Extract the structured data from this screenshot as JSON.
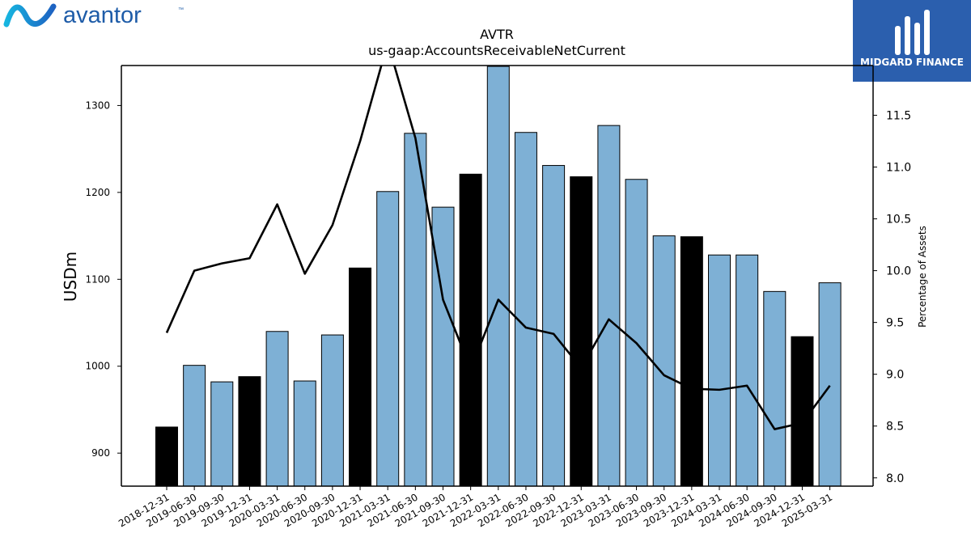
{
  "brand_left": {
    "name": "avantor",
    "trademark": "™"
  },
  "brand_right": {
    "name": "MIDGARD FINANCE"
  },
  "chart_data": {
    "type": "bar",
    "title": "AVTR",
    "subtitle": "us-gaap:AccountsReceivableNetCurrent",
    "ylabel": "USDm",
    "y2label": "Percentage of Assets",
    "ylim": [
      862,
      1346
    ],
    "y2lim": [
      7.92,
      11.98
    ],
    "yticks": [
      900,
      1000,
      1100,
      1200,
      1300
    ],
    "y2ticks": [
      "8.0",
      "8.5",
      "9.0",
      "9.5",
      "10.0",
      "10.5",
      "11.0",
      "11.5"
    ],
    "categories": [
      "2018-12-31",
      "2019-06-30",
      "2019-09-30",
      "2019-12-31",
      "2020-03-31",
      "2020-06-30",
      "2020-09-30",
      "2020-12-31",
      "2021-03-31",
      "2021-06-30",
      "2021-09-30",
      "2021-12-31",
      "2022-03-31",
      "2022-06-30",
      "2022-09-30",
      "2022-12-31",
      "2023-03-31",
      "2023-06-30",
      "2023-09-30",
      "2023-12-31",
      "2024-03-31",
      "2024-06-30",
      "2024-09-30",
      "2024-12-31",
      "2025-03-31"
    ],
    "series": [
      {
        "values": [
          930,
          1001,
          982,
          988,
          1040,
          983,
          1036,
          1113,
          1201,
          1268,
          1183,
          1221,
          1345,
          1269,
          1231,
          1218,
          1277,
          1215,
          1150,
          1149,
          1128,
          1128,
          1086,
          1034,
          1096
        ]
      },
      {
        "values": [
          9.4,
          10.0,
          10.07,
          10.12,
          10.64,
          9.97,
          10.44,
          11.25,
          12.2,
          11.28,
          9.72,
          9.05,
          9.72,
          9.45,
          9.39,
          9.06,
          9.53,
          9.3,
          8.99,
          8.86,
          8.85,
          8.89,
          8.47,
          8.53,
          8.89
        ]
      }
    ],
    "year_end_color": "#000000",
    "bar_color": "#7eb0d5",
    "line_color": "#000000"
  }
}
